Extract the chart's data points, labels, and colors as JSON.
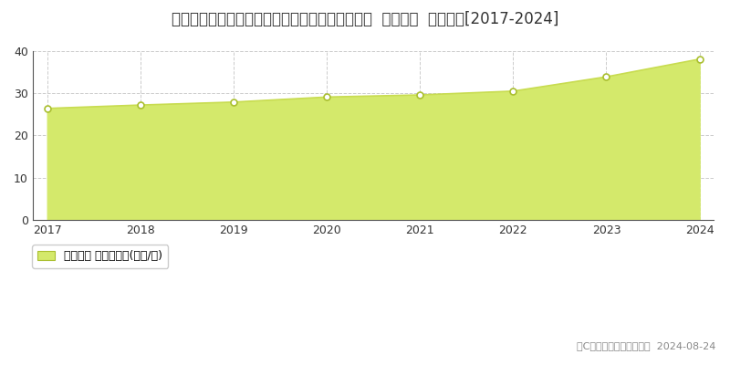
{
  "title": "北海道札幌市西区八軒１条東５丁目７２５番５外  地価公示  地価推移[2017-2024]",
  "years": [
    2017,
    2018,
    2019,
    2020,
    2021,
    2022,
    2023,
    2024
  ],
  "values": [
    26.4,
    27.2,
    27.9,
    29.1,
    29.6,
    30.5,
    33.9,
    38.1
  ],
  "fill_color": "#d4e96b",
  "line_color": "#c8dc50",
  "marker_facecolor": "#ffffff",
  "marker_edgecolor": "#aabf30",
  "hgrid_color": "#cccccc",
  "vgrid_color": "#cccccc",
  "bg_color": "#ffffff",
  "plot_bg_color": "#ffffff",
  "ylim": [
    0,
    40
  ],
  "yticks": [
    0,
    10,
    20,
    30,
    40
  ],
  "legend_label": "地価公示 平均坪単価(万円/坪)",
  "legend_color": "#d4e96b",
  "copyright_text": "（C）土地価格ドットコム  2024-08-24",
  "title_fontsize": 12,
  "tick_fontsize": 9,
  "legend_fontsize": 9,
  "copyright_fontsize": 8,
  "spine_color": "#555555",
  "text_color": "#333333",
  "copyright_color": "#888888"
}
